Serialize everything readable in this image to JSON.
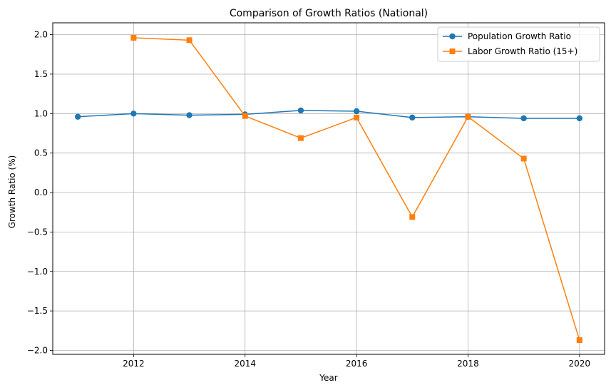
{
  "chart_data": {
    "type": "line",
    "title": "Comparison of Growth Ratios (National)",
    "xlabel": "Year",
    "ylabel": "Growth Ratio (%)",
    "xlim": [
      2010.55,
      2020.45
    ],
    "ylim": [
      -2.05,
      2.15
    ],
    "xticks": [
      2012,
      2014,
      2016,
      2018,
      2020
    ],
    "yticks": [
      -2.0,
      -1.5,
      -1.0,
      -0.5,
      0.0,
      0.5,
      1.0,
      1.5,
      2.0
    ],
    "grid": true,
    "legend_position": "top-right",
    "series": [
      {
        "name": "Population Growth Ratio",
        "color": "#1f77b4",
        "marker": "circle",
        "x": [
          2011,
          2012,
          2013,
          2014,
          2015,
          2016,
          2017,
          2018,
          2019,
          2020
        ],
        "y": [
          0.96,
          1.0,
          0.98,
          0.99,
          1.04,
          1.03,
          0.95,
          0.96,
          0.94,
          0.94
        ]
      },
      {
        "name": "Labor Growth Ratio (15+)",
        "color": "#ff7f0e",
        "marker": "square",
        "x": [
          2012,
          2013,
          2014,
          2015,
          2016,
          2017,
          2018,
          2019,
          2020
        ],
        "y": [
          1.96,
          1.93,
          0.97,
          0.69,
          0.95,
          -0.31,
          0.96,
          0.43,
          -1.87
        ]
      }
    ]
  }
}
